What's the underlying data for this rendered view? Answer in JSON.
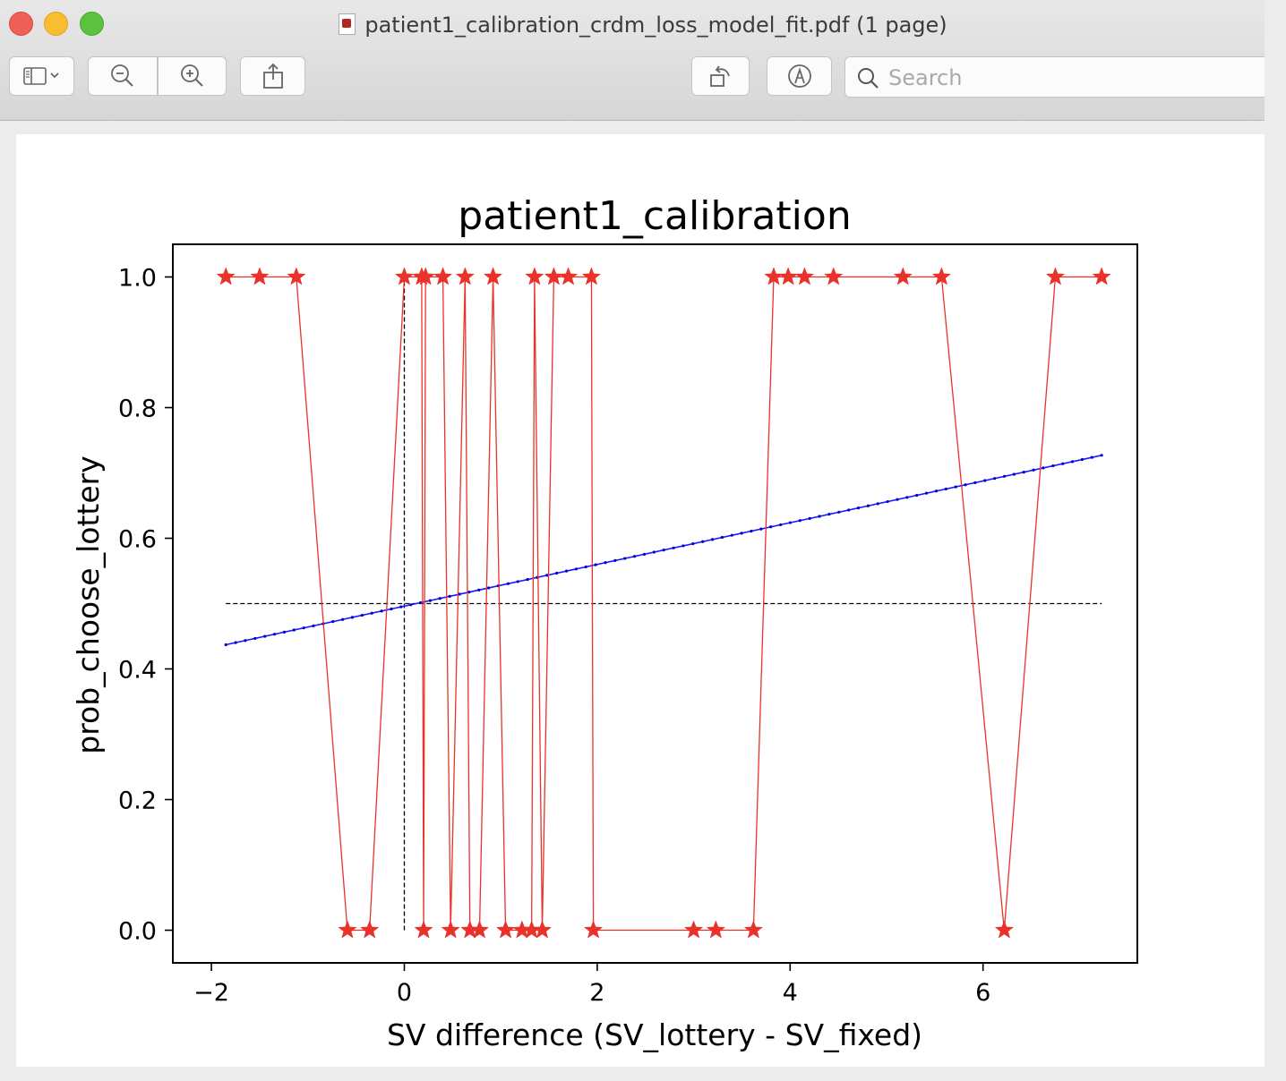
{
  "window": {
    "title": "patient1_calibration_crdm_loss_model_fit.pdf (1 page)"
  },
  "toolbar": {
    "sidebar_icon": "sidebar-toggle-icon",
    "zoom_out_icon": "zoom-out-icon",
    "zoom_in_icon": "zoom-in-icon",
    "share_icon": "share-icon",
    "rotate_icon": "rotate-icon",
    "markup_icon": "markup-pen-icon",
    "search_placeholder": "Search"
  },
  "chart_data": {
    "type": "line",
    "title": "patient1_calibration",
    "xlabel": "SV difference (SV_lottery - SV_fixed)",
    "ylabel": "prob_choose_lottery",
    "xlim": [
      -2.4,
      7.6
    ],
    "ylim": [
      -0.05,
      1.05
    ],
    "xticks": [
      -2,
      0,
      2,
      4,
      6
    ],
    "xtick_labels": [
      "−2",
      "0",
      "2",
      "4",
      "6"
    ],
    "yticks": [
      0.0,
      0.2,
      0.4,
      0.6,
      0.8,
      1.0
    ],
    "ytick_labels": [
      "0.0",
      "0.2",
      "0.4",
      "0.6",
      "0.8",
      "1.0"
    ],
    "grid": false,
    "series": [
      {
        "style": "red-star-line",
        "color": "#e8322a",
        "x": [
          -1.85,
          -1.5,
          -1.12,
          -0.59,
          -0.36,
          0.0,
          0.18,
          0.2,
          0.22,
          0.4,
          0.48,
          0.63,
          0.68,
          0.78,
          0.92,
          1.05,
          1.22,
          1.32,
          1.35,
          1.43,
          1.55,
          1.7,
          1.94,
          1.96,
          3.0,
          3.23,
          3.62,
          3.83,
          3.98,
          4.15,
          4.45,
          5.17,
          5.57,
          6.22,
          6.75,
          7.23
        ],
        "y": [
          1,
          1,
          1,
          0,
          0,
          1,
          1,
          0,
          1,
          1,
          0,
          1,
          0,
          0,
          1,
          0,
          0,
          0,
          1,
          0,
          1,
          1,
          1,
          0,
          0,
          0,
          0,
          1,
          1,
          1,
          1,
          1,
          1,
          0,
          1,
          1
        ]
      },
      {
        "style": "blue-dotted-fit",
        "color": "#1a1aff",
        "x_start": -1.85,
        "x_end": 7.23,
        "y_start": 0.437,
        "y_end": 0.727
      }
    ],
    "reference_lines": [
      {
        "orientation": "horizontal",
        "y": 0.5,
        "x_from": -1.85,
        "x_to": 7.23,
        "style": "dashed",
        "color": "#000000"
      },
      {
        "orientation": "vertical",
        "x": 0.0,
        "y_from": 0.0,
        "y_to": 1.0,
        "style": "dashed",
        "color": "#000000"
      }
    ]
  }
}
